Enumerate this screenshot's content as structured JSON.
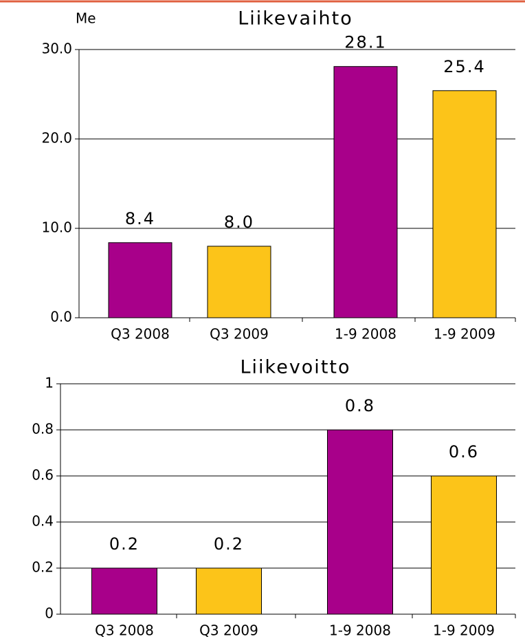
{
  "chart_data": [
    {
      "type": "bar",
      "title": "Liikevaihto",
      "y_label": "Me",
      "categories": [
        "Q3 2008",
        "Q3 2009",
        "1-9 2008",
        "1-9 2009"
      ],
      "values": [
        8.4,
        8.0,
        28.1,
        25.4
      ],
      "value_labels": [
        "8.4",
        "8.0",
        "28.1",
        "25.4"
      ],
      "colors": [
        "#a8008a",
        "#fcc419",
        "#a8008a",
        "#fcc419"
      ],
      "ylim": [
        0,
        30
      ],
      "yticks": [
        {
          "value": 0,
          "label": "0.0"
        },
        {
          "value": 10,
          "label": "10.0"
        },
        {
          "value": 20,
          "label": "20.0"
        },
        {
          "value": 30,
          "label": "30.0"
        }
      ],
      "grid": true
    },
    {
      "type": "bar",
      "title": "Liikevoitto",
      "categories": [
        "Q3 2008",
        "Q3 2009",
        "1-9 2008",
        "1-9 2009"
      ],
      "values": [
        0.2,
        0.2,
        0.8,
        0.6
      ],
      "colors": [
        "#a8008a",
        "#fcc419",
        "#a8008a",
        "#fcc419"
      ],
      "ylim": [
        0,
        1
      ],
      "yticks": [
        0,
        0.2,
        0.4,
        0.6,
        0.8,
        1
      ],
      "grid": true
    }
  ]
}
